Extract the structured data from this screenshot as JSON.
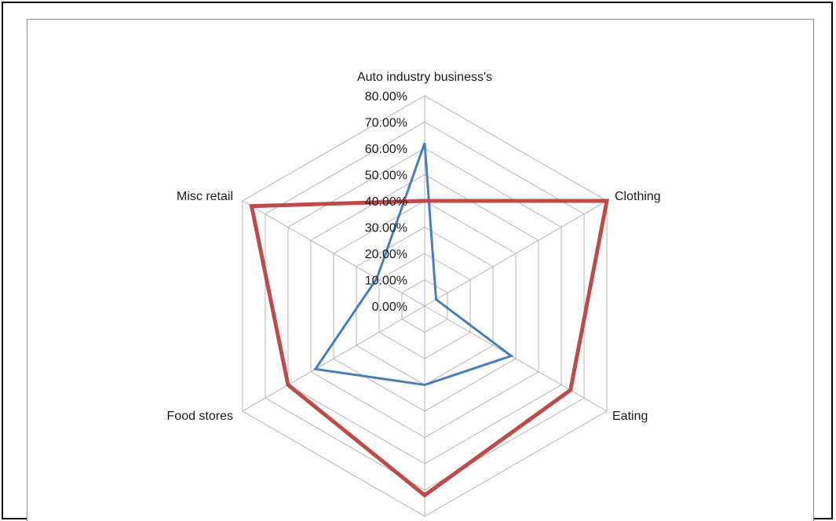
{
  "chart_data": {
    "type": "radar",
    "categories": [
      "Auto industry business's",
      "Clothing",
      "Eating",
      "",
      "Food stores",
      "Misc retail"
    ],
    "rmax": 0.8,
    "ticks": [
      "0.00%",
      "10.00%",
      "20.00%",
      "30.00%",
      "40.00%",
      "50.00%",
      "60.00%",
      "70.00%",
      "80.00%"
    ],
    "gridlines": true,
    "legend": "none",
    "series": [
      {
        "values": [
          0.62,
          0.05,
          0.38,
          0.3,
          0.48,
          0.21
        ],
        "color": "#4a7ebb"
      },
      {
        "values": [
          0.4,
          0.8,
          0.64,
          0.72,
          0.6,
          0.76
        ],
        "color": "#be4b48"
      }
    ]
  }
}
